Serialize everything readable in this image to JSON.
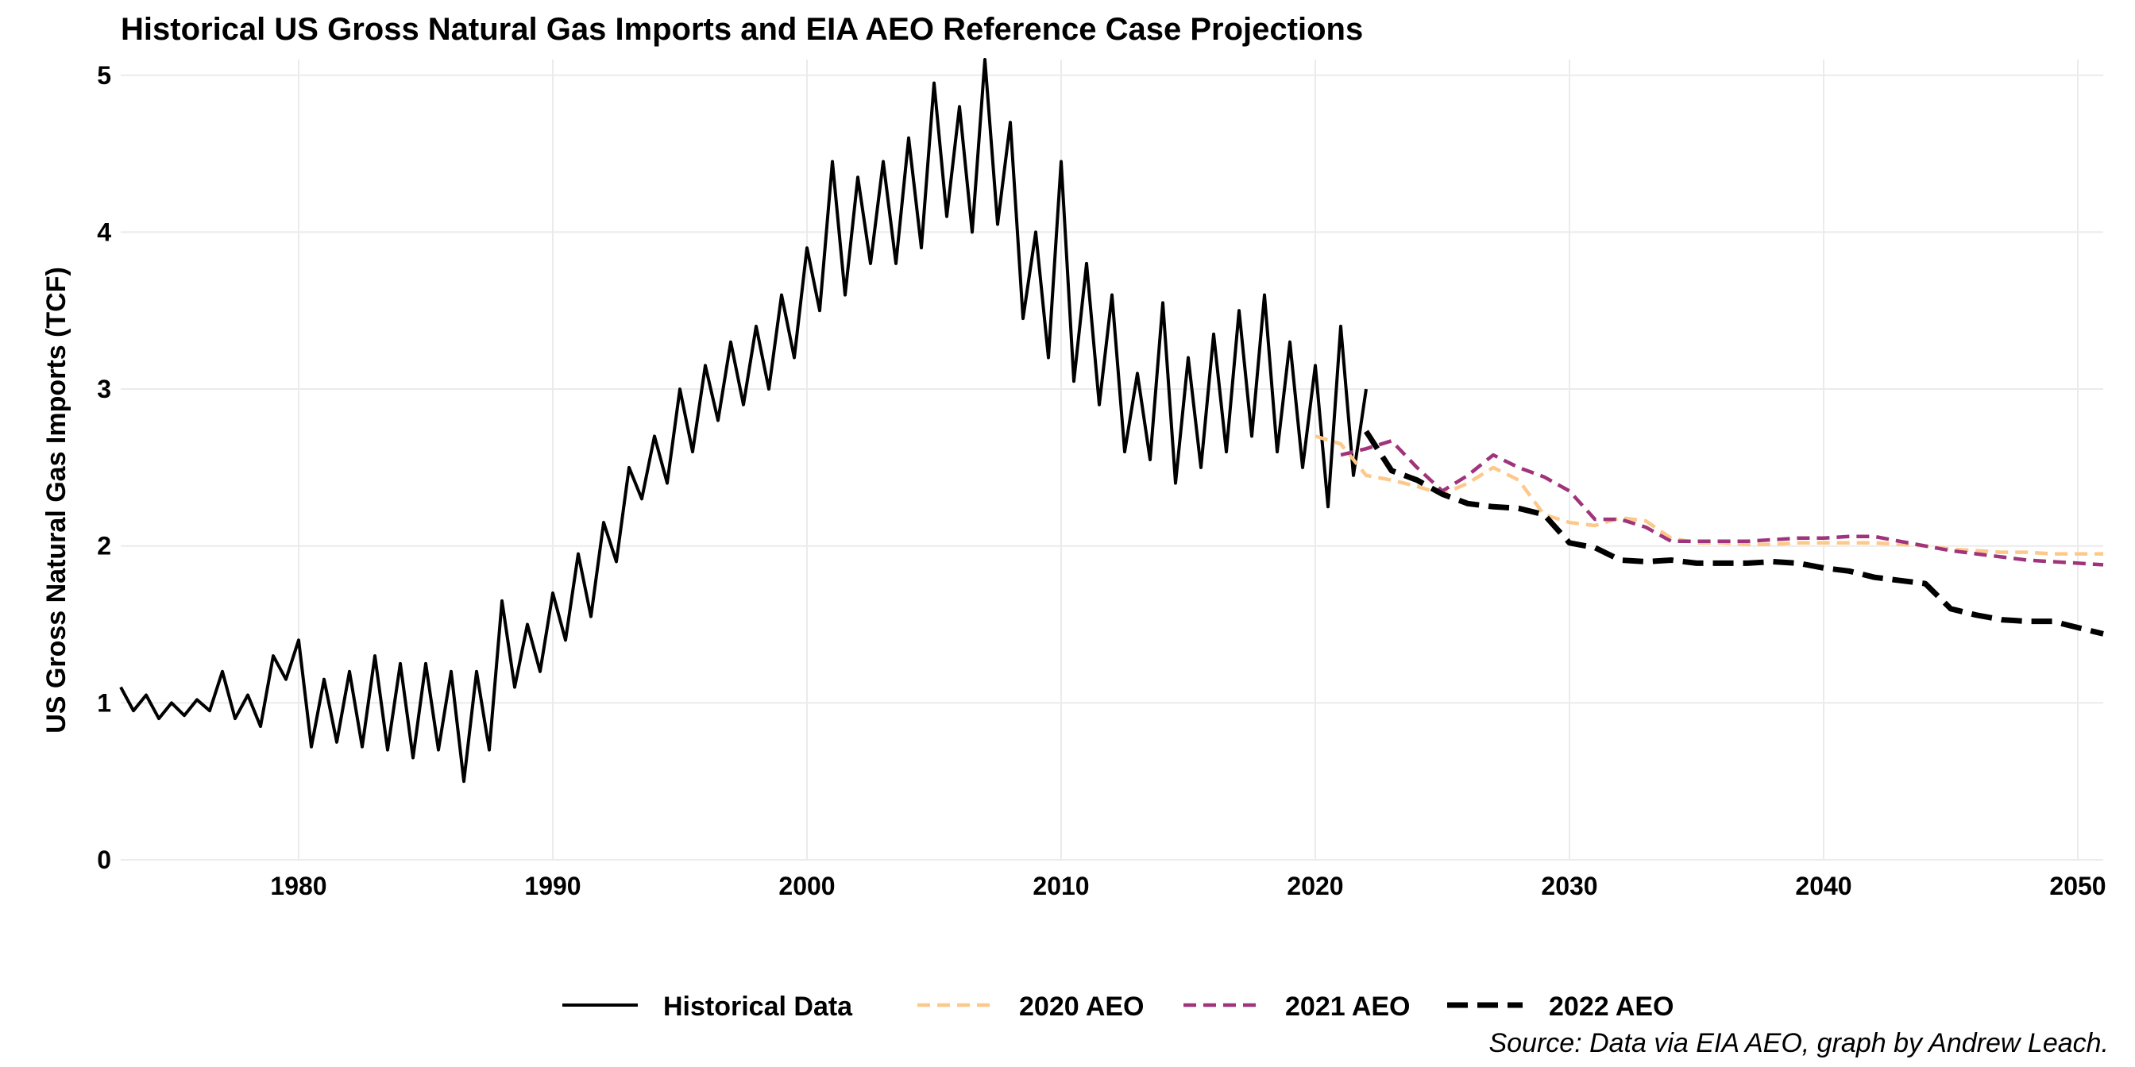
{
  "chart_data": {
    "type": "line",
    "title": "Historical US Gross Natural Gas Imports and EIA AEO Reference Case Projections",
    "ylabel": "US Gross Natural Gas Imports (TCF)",
    "xlabel": "",
    "caption": "Source: Data via EIA AEO, graph by Andrew Leach.",
    "xlim": [
      1973,
      2051
    ],
    "ylim": [
      0,
      5.1
    ],
    "x_ticks": [
      1980,
      1990,
      2000,
      2010,
      2020,
      2030,
      2040,
      2050
    ],
    "y_ticks": [
      0,
      1,
      2,
      3,
      4,
      5
    ],
    "grid": true,
    "legend_position": "bottom",
    "series": [
      {
        "name": "Historical Data",
        "style": "solid",
        "color": "#000000",
        "x": [
          1973.0,
          1973.5,
          1974.0,
          1974.5,
          1975.0,
          1975.5,
          1976.0,
          1976.5,
          1977.0,
          1977.5,
          1978.0,
          1978.5,
          1979.0,
          1979.5,
          1980.0,
          1980.5,
          1981.0,
          1981.5,
          1982.0,
          1982.5,
          1983.0,
          1983.5,
          1984.0,
          1984.5,
          1985.0,
          1985.5,
          1986.0,
          1986.5,
          1987.0,
          1987.5,
          1988.0,
          1988.5,
          1989.0,
          1989.5,
          1990.0,
          1990.5,
          1991.0,
          1991.5,
          1992.0,
          1992.5,
          1993.0,
          1993.5,
          1994.0,
          1994.5,
          1995.0,
          1995.5,
          1996.0,
          1996.5,
          1997.0,
          1997.5,
          1998.0,
          1998.5,
          1999.0,
          1999.5,
          2000.0,
          2000.5,
          2001.0,
          2001.5,
          2002.0,
          2002.5,
          2003.0,
          2003.5,
          2004.0,
          2004.5,
          2005.0,
          2005.5,
          2006.0,
          2006.5,
          2007.0,
          2007.5,
          2008.0,
          2008.5,
          2009.0,
          2009.5,
          2010.0,
          2010.5,
          2011.0,
          2011.5,
          2012.0,
          2012.5,
          2013.0,
          2013.5,
          2014.0,
          2014.5,
          2015.0,
          2015.5,
          2016.0,
          2016.5,
          2017.0,
          2017.5,
          2018.0,
          2018.5,
          2019.0,
          2019.5,
          2020.0,
          2020.5,
          2021.0,
          2021.5,
          2022.0
        ],
        "values": [
          1.1,
          0.95,
          1.05,
          0.9,
          1.0,
          0.92,
          1.02,
          0.95,
          1.2,
          0.9,
          1.05,
          0.85,
          1.3,
          1.15,
          1.4,
          0.72,
          1.15,
          0.75,
          1.2,
          0.72,
          1.3,
          0.7,
          1.25,
          0.65,
          1.25,
          0.7,
          1.2,
          0.5,
          1.2,
          0.7,
          1.65,
          1.1,
          1.5,
          1.2,
          1.7,
          1.4,
          1.95,
          1.55,
          2.15,
          1.9,
          2.5,
          2.3,
          2.7,
          2.4,
          3.0,
          2.6,
          3.15,
          2.8,
          3.3,
          2.9,
          3.4,
          3.0,
          3.6,
          3.2,
          3.9,
          3.5,
          4.45,
          3.6,
          4.35,
          3.8,
          4.45,
          3.8,
          4.6,
          3.9,
          4.95,
          4.1,
          4.8,
          4.0,
          5.1,
          4.05,
          4.7,
          3.45,
          4.0,
          3.2,
          4.45,
          3.05,
          3.8,
          2.9,
          3.6,
          2.6,
          3.1,
          2.55,
          3.55,
          2.4,
          3.2,
          2.5,
          3.35,
          2.6,
          3.5,
          2.7,
          3.6,
          2.6,
          3.3,
          2.5,
          3.15,
          2.25,
          3.4,
          2.45,
          3.0
        ]
      },
      {
        "name": "2020 AEO",
        "style": "dashed",
        "color": "#FDC98A",
        "x": [
          2020,
          2021,
          2022,
          2023,
          2024,
          2025,
          2026,
          2027,
          2028,
          2029,
          2030,
          2031,
          2032,
          2033,
          2034,
          2035,
          2036,
          2037,
          2038,
          2039,
          2040,
          2041,
          2042,
          2043,
          2044,
          2045,
          2046,
          2047,
          2048,
          2049,
          2050,
          2051
        ],
        "values": [
          2.7,
          2.65,
          2.45,
          2.42,
          2.38,
          2.33,
          2.4,
          2.5,
          2.42,
          2.2,
          2.15,
          2.13,
          2.18,
          2.16,
          2.05,
          2.02,
          2.02,
          2.01,
          2.01,
          2.02,
          2.02,
          2.02,
          2.02,
          2.01,
          2.0,
          1.98,
          1.97,
          1.96,
          1.96,
          1.95,
          1.95,
          1.95
        ]
      },
      {
        "name": "2021 AEO",
        "style": "dashed",
        "color": "#A0347C",
        "x": [
          2021,
          2022,
          2023,
          2024,
          2025,
          2026,
          2027,
          2028,
          2029,
          2030,
          2031,
          2032,
          2033,
          2034,
          2035,
          2036,
          2037,
          2038,
          2039,
          2040,
          2041,
          2042,
          2043,
          2044,
          2045,
          2046,
          2047,
          2048,
          2049,
          2050,
          2051
        ],
        "values": [
          2.58,
          2.62,
          2.67,
          2.5,
          2.35,
          2.45,
          2.58,
          2.5,
          2.44,
          2.35,
          2.17,
          2.17,
          2.12,
          2.03,
          2.03,
          2.03,
          2.03,
          2.04,
          2.05,
          2.05,
          2.06,
          2.06,
          2.03,
          2.0,
          1.97,
          1.95,
          1.93,
          1.91,
          1.9,
          1.89,
          1.88
        ]
      },
      {
        "name": "2022 AEO",
        "style": "dashed",
        "color": "#000000",
        "x": [
          2022,
          2023,
          2024,
          2025,
          2026,
          2027,
          2028,
          2029,
          2030,
          2031,
          2032,
          2033,
          2034,
          2035,
          2036,
          2037,
          2038,
          2039,
          2040,
          2041,
          2042,
          2043,
          2044,
          2045,
          2046,
          2047,
          2048,
          2049,
          2050,
          2051
        ],
        "values": [
          2.73,
          2.48,
          2.42,
          2.33,
          2.27,
          2.25,
          2.24,
          2.2,
          2.02,
          1.99,
          1.91,
          1.9,
          1.91,
          1.89,
          1.89,
          1.89,
          1.9,
          1.89,
          1.86,
          1.84,
          1.8,
          1.78,
          1.76,
          1.6,
          1.56,
          1.53,
          1.52,
          1.52,
          1.48,
          1.44
        ]
      }
    ]
  }
}
